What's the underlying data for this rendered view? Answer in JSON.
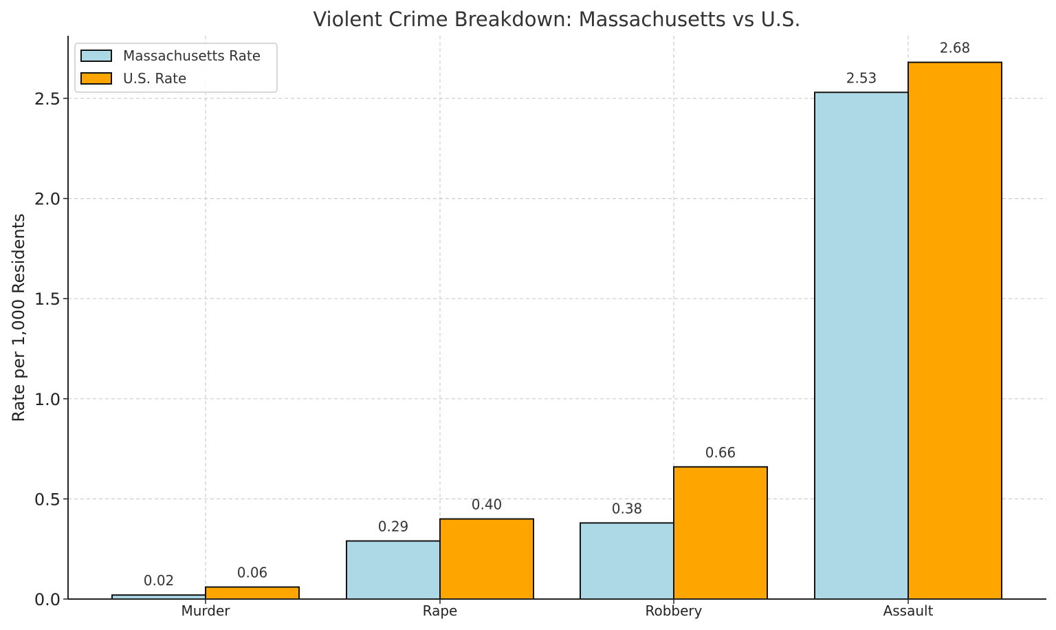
{
  "chart_data": {
    "type": "bar",
    "title": "Violent Crime Breakdown: Massachusetts vs U.S.",
    "xlabel": "",
    "ylabel": "Rate per 1,000 Residents",
    "categories": [
      "Murder",
      "Rape",
      "Robbery",
      "Assault"
    ],
    "series": [
      {
        "name": "Massachusetts Rate",
        "color": "#add8e6",
        "values": [
          0.02,
          0.29,
          0.38,
          2.53
        ]
      },
      {
        "name": "U.S. Rate",
        "color": "#ffa500",
        "values": [
          0.06,
          0.4,
          0.66,
          2.68
        ]
      }
    ],
    "data_labels": {
      "Massachusetts Rate": [
        "0.02",
        "0.29",
        "0.38",
        "2.53"
      ],
      "U.S. Rate": [
        "0.06",
        "0.40",
        "0.66",
        "2.68"
      ]
    },
    "yticks": [
      "0.0",
      "0.5",
      "1.0",
      "1.5",
      "2.0",
      "2.5"
    ],
    "ylim": [
      0,
      2.81
    ],
    "grid": true,
    "legend_position": "upper left"
  }
}
